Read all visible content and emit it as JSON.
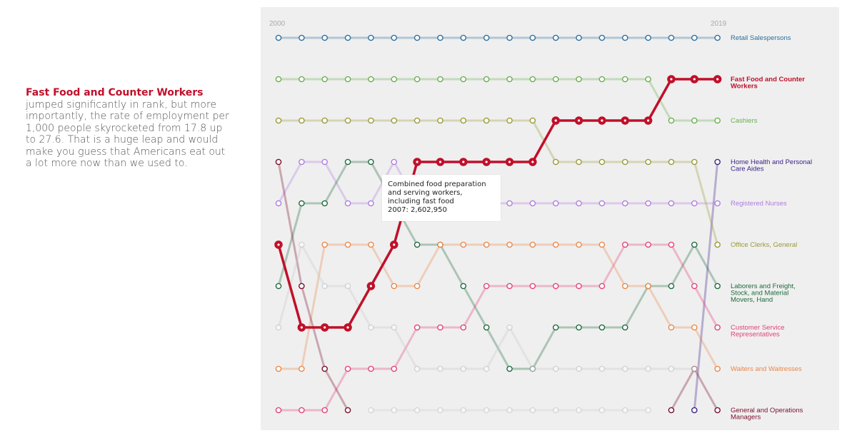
{
  "story": {
    "highlight": "Fast Food and Counter Workers",
    "text": "jumped significantly in rank, but more importantly, the rate of employment per 1,000 people skyrocketed from 17.8 up to 27.6. That is a huge leap and would make you guess that Americans eat out a lot more now than we used to."
  },
  "tooltip": {
    "name": "Combined food preparation and serving workers, including fast food",
    "value": "2007: 2,602,950"
  },
  "chart_data": {
    "type": "line",
    "subtype": "rank bump chart",
    "start_year": "2000",
    "end_year": "2019",
    "x": [
      2000,
      2001,
      2002,
      2003,
      2004,
      2005,
      2006,
      2007,
      2008,
      2009,
      2010,
      2011,
      2012,
      2013,
      2014,
      2015,
      2016,
      2017,
      2018,
      2019
    ],
    "rank_axis": [
      1,
      2,
      3,
      4,
      5,
      6,
      7,
      8,
      9,
      10
    ],
    "highlight_series": "Fast Food and Counter Workers",
    "series": [
      {
        "name": "Retail Salespersons",
        "color": "#2f6f9c",
        "ranks": [
          1,
          1,
          1,
          1,
          1,
          1,
          1,
          1,
          1,
          1,
          1,
          1,
          1,
          1,
          1,
          1,
          1,
          1,
          1,
          1
        ]
      },
      {
        "name": "Fast Food and Counter Workers",
        "color": "#c0102a",
        "highlight": true,
        "ranks": [
          6,
          8,
          8,
          8,
          7,
          6,
          4,
          4,
          4,
          4,
          4,
          4,
          3,
          3,
          3,
          3,
          3,
          2,
          2,
          2
        ]
      },
      {
        "name": "Cashiers",
        "color": "#6aae4f",
        "ranks": [
          2,
          2,
          2,
          2,
          2,
          2,
          2,
          2,
          2,
          2,
          2,
          2,
          2,
          2,
          2,
          2,
          2,
          3,
          3,
          3
        ]
      },
      {
        "name": "Home Health and Personal Care Aides",
        "color": "#3d2389",
        "ranks": [
          null,
          null,
          null,
          null,
          null,
          null,
          null,
          null,
          null,
          null,
          null,
          null,
          null,
          null,
          null,
          null,
          null,
          null,
          10,
          4
        ]
      },
      {
        "name": "Registered Nurses",
        "color": "#b07de0",
        "ranks": [
          5,
          4,
          4,
          5,
          5,
          4,
          5,
          5,
          5,
          5,
          5,
          5,
          5,
          5,
          5,
          5,
          5,
          5,
          5,
          5
        ]
      },
      {
        "name": "Office Clerks, General",
        "color": "#9a9a3a",
        "ranks": [
          3,
          3,
          3,
          3,
          3,
          3,
          3,
          3,
          3,
          3,
          3,
          3,
          4,
          4,
          4,
          4,
          4,
          4,
          4,
          6
        ]
      },
      {
        "name": "Laborers and Freight, Stock, and Material Movers, Hand",
        "color": "#1f6b3e",
        "ranks": [
          7,
          5,
          5,
          4,
          4,
          5,
          6,
          6,
          7,
          8,
          9,
          9,
          8,
          8,
          8,
          8,
          7,
          7,
          6,
          7
        ]
      },
      {
        "name": "Customer Service Representatives",
        "color": "#e4427a",
        "ranks": [
          10,
          10,
          10,
          9,
          9,
          9,
          8,
          8,
          8,
          7,
          7,
          7,
          7,
          7,
          7,
          6,
          6,
          6,
          7,
          8
        ]
      },
      {
        "name": "Waiters and Waitresses",
        "color": "#e8894a",
        "ranks": [
          9,
          9,
          6,
          6,
          6,
          7,
          7,
          6,
          6,
          6,
          6,
          6,
          6,
          6,
          6,
          7,
          7,
          8,
          8,
          9
        ]
      },
      {
        "name": "General and Operations Managers",
        "color": "#7a0f2c",
        "ranks": [
          4,
          7,
          9,
          10,
          null,
          null,
          null,
          null,
          null,
          null,
          null,
          null,
          null,
          null,
          null,
          null,
          null,
          10,
          9,
          10
        ]
      },
      {
        "name": "",
        "color": "#c8c8c8",
        "ranks": [
          8,
          6,
          7,
          7,
          8,
          8,
          9,
          9,
          9,
          9,
          8,
          9,
          9,
          9,
          9,
          9,
          9,
          9,
          9,
          null
        ]
      },
      {
        "name": "",
        "color": "#cdcdcd",
        "ranks": [
          null,
          null,
          null,
          null,
          10,
          10,
          10,
          10,
          10,
          10,
          10,
          10,
          10,
          10,
          10,
          10,
          10,
          null,
          null,
          null
        ]
      }
    ],
    "labels": [
      {
        "text": "Retail Salespersons",
        "color": "#2f6f9c",
        "rank": 1,
        "bold": false
      },
      {
        "text": "Fast Food and Counter Workers",
        "color": "#c0102a",
        "rank": 2,
        "bold": true
      },
      {
        "text": "Cashiers",
        "color": "#6aae4f",
        "rank": 3,
        "bold": false
      },
      {
        "text": "Home Health and Personal Care Aides",
        "color": "#3d2389",
        "rank": 4,
        "bold": false
      },
      {
        "text": "Registered Nurses",
        "color": "#b07de0",
        "rank": 5,
        "bold": false
      },
      {
        "text": "Office Clerks, General",
        "color": "#9a9a3a",
        "rank": 6,
        "bold": false
      },
      {
        "text": "Laborers and Freight, Stock, and Material Movers, Hand",
        "color": "#1f6b3e",
        "rank": 7,
        "bold": false
      },
      {
        "text": "Customer Service Representatives",
        "color": "#e4427a",
        "rank": 8,
        "bold": false
      },
      {
        "text": "Waiters and Waitresses",
        "color": "#e8894a",
        "rank": 9,
        "bold": false
      },
      {
        "text": "General and Operations Managers",
        "color": "#7a0f2c",
        "rank": 10,
        "bold": false
      }
    ]
  }
}
